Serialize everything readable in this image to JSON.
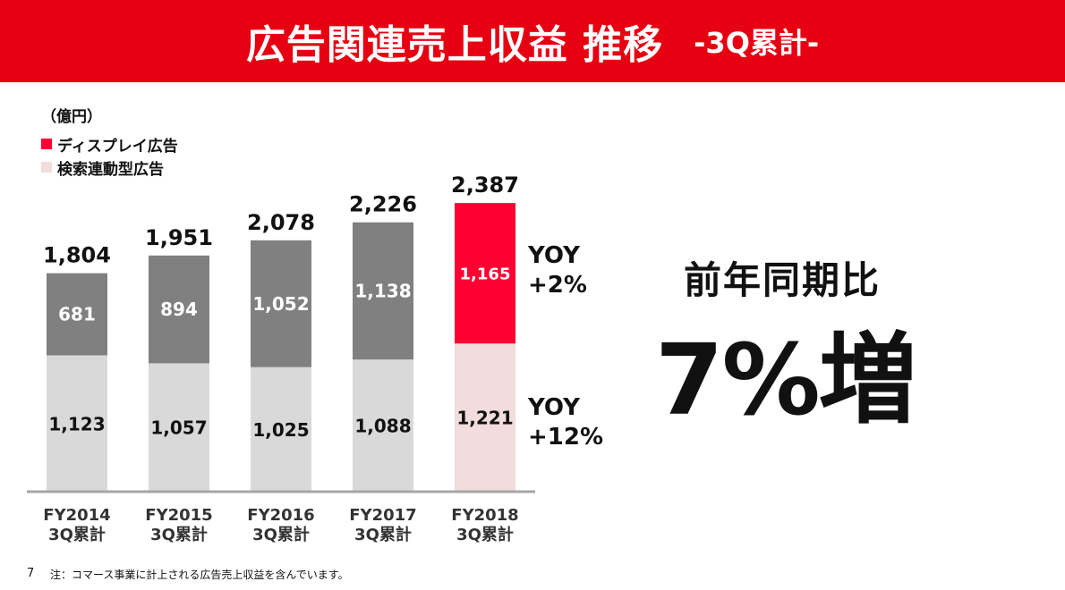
{
  "header": {
    "title": "広告関連売上収益 推移",
    "subtitle": "-3Q累計-",
    "bg_color": "#e60012"
  },
  "chart_data": {
    "type": "bar",
    "stacked": true,
    "unit_label": "（億円）",
    "categories": [
      [
        "FY2014",
        "3Q累計"
      ],
      [
        "FY2015",
        "3Q累計"
      ],
      [
        "FY2016",
        "3Q累計"
      ],
      [
        "FY2017",
        "3Q累計"
      ],
      [
        "FY2018",
        "3Q累計"
      ]
    ],
    "series": [
      {
        "name": "検索連動型広告",
        "values": [
          1123,
          1057,
          1025,
          1088,
          1221
        ],
        "labels": [
          "1,123",
          "1,057",
          "1,025",
          "1,088",
          "1,221"
        ],
        "color": "#d9d9d9",
        "highlight_color": "#f2dcdc"
      },
      {
        "name": "ディスプレイ広告",
        "values": [
          681,
          894,
          1052,
          1138,
          1165
        ],
        "labels": [
          "681",
          "894",
          "1,052",
          "1,138",
          "1,165"
        ],
        "color": "#808080",
        "highlight_color": "#ff0033"
      }
    ],
    "totals": [
      "1,804",
      "1,951",
      "2,078",
      "2,226",
      "2,387"
    ],
    "highlight_index": 4,
    "legend": [
      {
        "name": "ディスプレイ広告",
        "color": "#ff0033"
      },
      {
        "name": "検索連動型広告",
        "color": "#f2dcdc"
      }
    ],
    "ylim": [
      0,
      2387
    ]
  },
  "yoy": {
    "display": [
      "YOY",
      "+2%"
    ],
    "search": [
      "YOY",
      "+12%"
    ]
  },
  "summary": {
    "label": "前年同期比",
    "value": "7%増"
  },
  "footer": {
    "page": "7",
    "note": "注：コマース事業に計上される広告売上収益を含んでいます。"
  }
}
